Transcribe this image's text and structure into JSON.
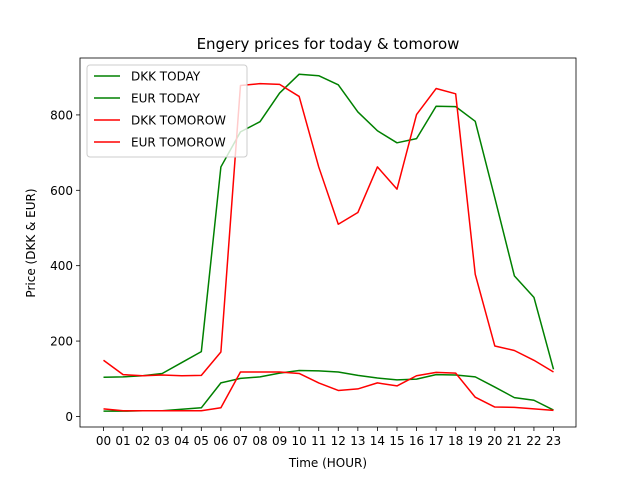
{
  "chart_data": {
    "type": "line",
    "title": "Engery prices for today & tomorow",
    "xlabel": "Time (HOUR)",
    "ylabel": "Price (DKK & EUR)",
    "categories": [
      "00",
      "01",
      "02",
      "03",
      "04",
      "05",
      "06",
      "07",
      "08",
      "09",
      "10",
      "11",
      "12",
      "13",
      "14",
      "15",
      "16",
      "17",
      "18",
      "19",
      "20",
      "21",
      "22",
      "23"
    ],
    "ylim": [
      -28,
      951
    ],
    "yticks": [
      0,
      200,
      400,
      600,
      800
    ],
    "legend_position": "upper left",
    "series": [
      {
        "name": "DKK TODAY",
        "color": "#008000",
        "values": [
          104,
          105,
          108,
          114,
          143,
          172,
          662,
          755,
          782,
          858,
          908,
          904,
          880,
          808,
          758,
          726,
          737,
          823,
          822,
          783,
          580,
          373,
          316,
          125
        ]
      },
      {
        "name": "EUR TODAY",
        "color": "#008000",
        "values": [
          14,
          14,
          15,
          15,
          19,
          23,
          89,
          101,
          105,
          115,
          122,
          121,
          118,
          109,
          102,
          97,
          99,
          111,
          110,
          105,
          78,
          50,
          43,
          17
        ]
      },
      {
        "name": "DKK TOMOROW",
        "color": "#ff0000",
        "values": [
          149,
          111,
          108,
          110,
          108,
          109,
          171,
          878,
          883,
          881,
          849,
          662,
          510,
          541,
          662,
          603,
          801,
          870,
          856,
          377,
          187,
          175,
          149,
          118
        ]
      },
      {
        "name": "EUR TOMOROW",
        "color": "#ff0000",
        "values": [
          20,
          15,
          15,
          15,
          15,
          15,
          23,
          118,
          118,
          118,
          114,
          89,
          69,
          73,
          89,
          81,
          108,
          117,
          115,
          51,
          25,
          24,
          20,
          16
        ]
      }
    ]
  }
}
